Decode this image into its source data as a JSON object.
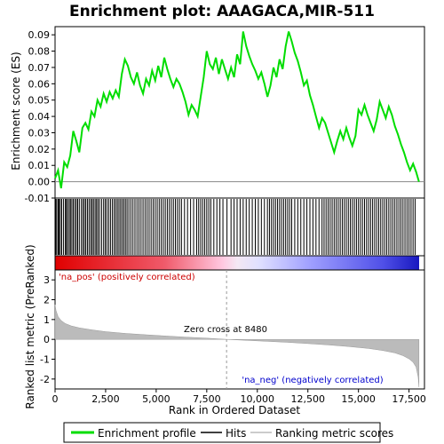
{
  "chart_data": {
    "type": "line",
    "title": "Enrichment plot: AAAGACA,MIR-511",
    "top_panel": {
      "ylabel": "Enrichment score (ES)",
      "ylim": [
        -0.01,
        0.095
      ],
      "yticks": [
        "-0.01",
        "0.00",
        "0.01",
        "0.02",
        "0.03",
        "0.04",
        "0.05",
        "0.06",
        "0.07",
        "0.08",
        "0.09"
      ],
      "ytick_values": [
        -0.01,
        0.0,
        0.01,
        0.02,
        0.03,
        0.04,
        0.05,
        0.06,
        0.07,
        0.08,
        0.09
      ],
      "line_color": "#00dd00",
      "es_curve": {
        "x": [
          0,
          150,
          300,
          450,
          600,
          750,
          900,
          1050,
          1200,
          1350,
          1500,
          1650,
          1800,
          1950,
          2100,
          2250,
          2400,
          2550,
          2700,
          2850,
          3000,
          3150,
          3300,
          3450,
          3600,
          3750,
          3900,
          4050,
          4200,
          4350,
          4500,
          4650,
          4800,
          4950,
          5100,
          5250,
          5400,
          5550,
          5700,
          5850,
          6000,
          6150,
          6300,
          6450,
          6600,
          6750,
          6900,
          7050,
          7200,
          7350,
          7500,
          7650,
          7800,
          7950,
          8100,
          8250,
          8400,
          8550,
          8700,
          8850,
          9000,
          9150,
          9300,
          9450,
          9600,
          9750,
          9900,
          10050,
          10200,
          10350,
          10500,
          10650,
          10800,
          10950,
          11100,
          11250,
          11400,
          11550,
          11700,
          11850,
          12000,
          12150,
          12300,
          12450,
          12600,
          12750,
          12900,
          13050,
          13200,
          13350,
          13500,
          13650,
          13800,
          13950,
          14100,
          14250,
          14400,
          14550,
          14700,
          14850,
          15000,
          15150,
          15300,
          15450,
          15600,
          15750,
          15900,
          16050,
          16200,
          16350,
          16500,
          16650,
          16800,
          16950,
          17100,
          17250,
          17400,
          17550,
          17700,
          17850,
          17990
        ],
        "y": [
          0.002,
          0.007,
          -0.004,
          0.012,
          0.009,
          0.016,
          0.031,
          0.025,
          0.018,
          0.033,
          0.036,
          0.032,
          0.043,
          0.04,
          0.05,
          0.046,
          0.054,
          0.049,
          0.055,
          0.051,
          0.056,
          0.052,
          0.066,
          0.075,
          0.071,
          0.064,
          0.06,
          0.067,
          0.059,
          0.054,
          0.063,
          0.059,
          0.068,
          0.062,
          0.071,
          0.064,
          0.076,
          0.069,
          0.063,
          0.058,
          0.063,
          0.06,
          0.055,
          0.049,
          0.041,
          0.047,
          0.044,
          0.04,
          0.052,
          0.064,
          0.08,
          0.072,
          0.069,
          0.076,
          0.066,
          0.075,
          0.069,
          0.063,
          0.07,
          0.064,
          0.078,
          0.072,
          0.092,
          0.083,
          0.077,
          0.072,
          0.068,
          0.063,
          0.067,
          0.06,
          0.052,
          0.059,
          0.07,
          0.064,
          0.075,
          0.069,
          0.083,
          0.092,
          0.086,
          0.079,
          0.074,
          0.067,
          0.059,
          0.062,
          0.053,
          0.047,
          0.04,
          0.033,
          0.039,
          0.036,
          0.03,
          0.024,
          0.018,
          0.025,
          0.031,
          0.026,
          0.033,
          0.027,
          0.022,
          0.028,
          0.044,
          0.041,
          0.047,
          0.041,
          0.036,
          0.031,
          0.038,
          0.049,
          0.044,
          0.039,
          0.046,
          0.041,
          0.034,
          0.029,
          0.023,
          0.018,
          0.012,
          0.007,
          0.011,
          0.006,
          0.0
        ]
      },
      "hits": [
        30,
        80,
        150,
        200,
        260,
        330,
        420,
        510,
        560,
        620,
        700,
        760,
        830,
        900,
        980,
        1050,
        1120,
        1200,
        1300,
        1380,
        1450,
        1520,
        1600,
        1680,
        1760,
        1830,
        1900,
        1980,
        2050,
        2120,
        2200,
        2300,
        2400,
        2480,
        2560,
        2650,
        2740,
        2830,
        2920,
        3000,
        3080,
        3160,
        3240,
        3320,
        3400,
        3480,
        3560,
        3650,
        3750,
        3850,
        3950,
        4050,
        4150,
        4250,
        4350,
        4450,
        4550,
        4650,
        4750,
        4850,
        4950,
        5050,
        5150,
        5250,
        5350,
        5450,
        5550,
        5650,
        5750,
        5850,
        5950,
        6050,
        6150,
        6250,
        6400,
        6550,
        6700,
        6850,
        7000,
        7100,
        7200,
        7300,
        7400,
        7500,
        7600,
        7700,
        7850,
        8000,
        8150,
        8300,
        8500,
        8700,
        8850,
        9000,
        9150,
        9300,
        9450,
        9600,
        9750,
        9900,
        10050,
        10200,
        10350,
        10500,
        10600,
        10700,
        10800,
        10900,
        11000,
        11100,
        11200,
        11300,
        11400,
        11500,
        11600,
        11700,
        11850,
        12000,
        12150,
        12300,
        12450,
        12600,
        12750,
        12900,
        13050,
        13200,
        13300,
        13400,
        13500,
        13600,
        13700,
        13800,
        13900,
        14000,
        14100,
        14200,
        14300,
        14400,
        14500,
        14600,
        14700,
        14800,
        14900,
        15000,
        15100,
        15200,
        15300,
        15400,
        15500,
        15600,
        15700,
        15800,
        15900,
        16000,
        16100,
        16200,
        16300,
        16400,
        16500,
        16600,
        16700,
        16800,
        16900,
        17000,
        17100,
        17200,
        17300,
        17400,
        17500,
        17600,
        17700,
        17800
      ]
    },
    "bottom_panel": {
      "ylabel": "Ranked list metric (PreRanked)",
      "xlabel": "Rank in Ordered Dataset",
      "ylim": [
        -2.5,
        3.5
      ],
      "yticks": [
        "-2",
        "-1",
        "0",
        "1",
        "2",
        "3"
      ],
      "ytick_values": [
        -2,
        -1,
        0,
        1,
        2,
        3
      ],
      "xlim": [
        0,
        18000
      ],
      "xticks": [
        "0",
        "2,500",
        "5,000",
        "7,500",
        "10,000",
        "12,500",
        "15,000",
        "17,500"
      ],
      "xtick_values": [
        0,
        2500,
        5000,
        7500,
        10000,
        12500,
        15000,
        17500
      ],
      "metric_curve": {
        "x": [
          0,
          50,
          150,
          300,
          500,
          800,
          1200,
          1800,
          2500,
          3500,
          4500,
          5500,
          6500,
          7500,
          8480,
          9500,
          10500,
          11500,
          12500,
          13500,
          14500,
          15500,
          16200,
          16800,
          17200,
          17500,
          17700,
          17850,
          17950,
          17990
        ],
        "y": [
          1.75,
          1.45,
          1.15,
          0.95,
          0.8,
          0.68,
          0.58,
          0.48,
          0.39,
          0.3,
          0.23,
          0.17,
          0.11,
          0.06,
          0.0,
          -0.05,
          -0.1,
          -0.15,
          -0.21,
          -0.28,
          -0.36,
          -0.46,
          -0.56,
          -0.68,
          -0.82,
          -0.98,
          -1.15,
          -1.4,
          -1.9,
          -2.4
        ]
      },
      "zero_cross_label": "Zero cross at 8480",
      "zero_cross": 8480,
      "pos_label": "'na_pos' (positively correlated)",
      "neg_label": "'na_neg' (negatively correlated)"
    },
    "legend": {
      "items": [
        {
          "label": "Enrichment profile",
          "color": "#00dd00"
        },
        {
          "label": "Hits",
          "color": "#000000"
        },
        {
          "label": "Ranking metric scores",
          "color": "#bbbbbb"
        }
      ],
      "placement": "bottom"
    }
  }
}
